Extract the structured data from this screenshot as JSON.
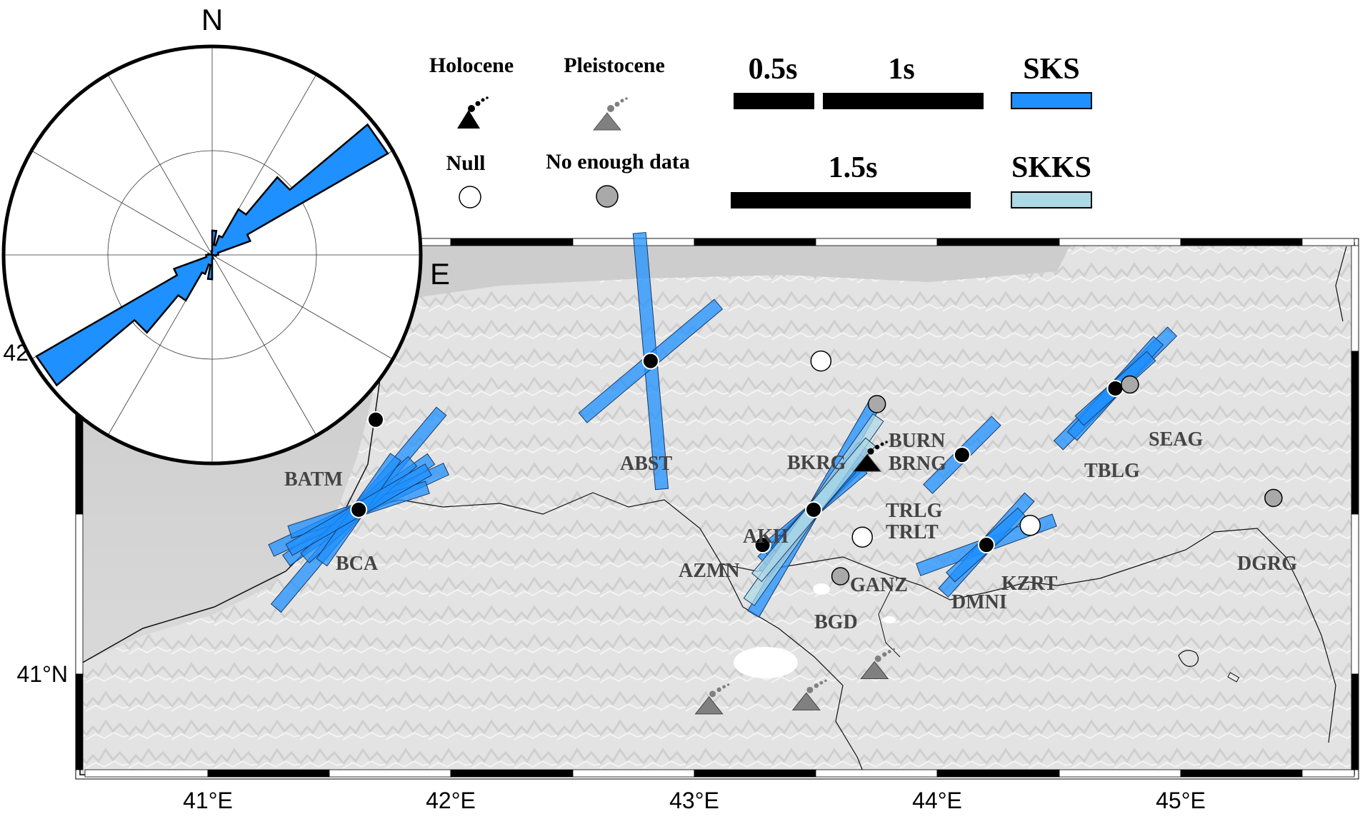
{
  "compass": {
    "north": "N",
    "east": "E"
  },
  "legend": {
    "holocene": "Holocene",
    "pleistocene": "Pleistocene",
    "null": "Null",
    "no_enough_data": "No enough data",
    "scale_05": "0.5s",
    "scale_1": "1s",
    "scale_15": "1.5s",
    "sks": "SKS",
    "skks": "SKKS"
  },
  "colors": {
    "sks": "#1E90FF",
    "skks": "#ADD8E6",
    "null": "#ffffff",
    "no_data": "#A9A9A9",
    "holocene": "#000000",
    "pleistocene": "#808080"
  },
  "axes": {
    "x_ticks": [
      "41°E",
      "42°E",
      "43°E",
      "44°E",
      "45°E"
    ],
    "y_ticks": [
      "41°N",
      "42"
    ]
  },
  "stations": [
    {
      "code": "BATM",
      "lon": 41.69,
      "lat": 41.65,
      "type": "measured",
      "label": "BATM"
    },
    {
      "code": "BCA",
      "lon": 41.62,
      "lat": 41.42,
      "type": "measured",
      "label": "BCA"
    },
    {
      "code": "ABST",
      "lon": 42.82,
      "lat": 41.8,
      "type": "measured",
      "label": "ABST"
    },
    {
      "code": "BKRG",
      "lon": 43.52,
      "lat": 41.8,
      "type": "null",
      "label": "BKRG"
    },
    {
      "code": "BURN",
      "lon": 43.75,
      "lat": 41.69,
      "type": "no_data",
      "label": "BURN"
    },
    {
      "code": "BRNG",
      "lon": 43.75,
      "lat": 41.69,
      "type": "no_data",
      "label": "BRNG"
    },
    {
      "code": "TRLG",
      "lon": 43.7,
      "lat": 41.5,
      "type": "volcano",
      "label": "TRLG"
    },
    {
      "code": "TRLT",
      "lon": 43.7,
      "lat": 41.5,
      "type": "volcano",
      "label": "TRLT"
    },
    {
      "code": "AKH",
      "lon": 43.49,
      "lat": 41.42,
      "type": "measured",
      "label": "AKH"
    },
    {
      "code": "AZMN",
      "lon": 43.28,
      "lat": 41.33,
      "type": "measured",
      "label": "AZMN"
    },
    {
      "code": "GANZ",
      "lon": 43.69,
      "lat": 41.35,
      "type": "null",
      "label": "GANZ"
    },
    {
      "code": "BGD",
      "lon": 43.6,
      "lat": 41.25,
      "type": "no_data",
      "label": "BGD"
    },
    {
      "code": "KZRT",
      "lon": 44.38,
      "lat": 41.38,
      "type": "null",
      "label": "KZRT"
    },
    {
      "code": "DMNI",
      "lon": 44.2,
      "lat": 41.33,
      "type": "measured",
      "label": "DMNI"
    },
    {
      "code": "TBLG",
      "lon": 44.73,
      "lat": 41.73,
      "type": "measured",
      "label": "TBLG"
    },
    {
      "code": "SEAG",
      "lon": 44.79,
      "lat": 41.74,
      "type": "no_data",
      "label": "SEAG"
    },
    {
      "code": "DGRG",
      "lon": 45.38,
      "lat": 41.45,
      "type": "no_data",
      "label": "DGRG"
    },
    {
      "code": "UNK1",
      "lon": 44.1,
      "lat": 41.56,
      "type": "measured",
      "label": ""
    }
  ],
  "volcanoes": [
    {
      "lon": 43.06,
      "lat": 40.92,
      "age": "pleistocene"
    },
    {
      "lon": 43.46,
      "lat": 40.93,
      "age": "pleistocene"
    },
    {
      "lon": 43.74,
      "lat": 41.01,
      "age": "pleistocene"
    },
    {
      "lon": 43.71,
      "lat": 41.54,
      "age": "holocene"
    }
  ],
  "splitting": [
    {
      "lon": 41.62,
      "lat": 41.42,
      "phi": 40,
      "dt": 1.6,
      "phase": "SKS"
    },
    {
      "lon": 41.62,
      "lat": 41.42,
      "phi": 55,
      "dt": 1.1,
      "phase": "SKS"
    },
    {
      "lon": 41.62,
      "lat": 41.42,
      "phi": 65,
      "dt": 1.2,
      "phase": "SKS"
    },
    {
      "lon": 41.62,
      "lat": 41.42,
      "phi": 72,
      "dt": 0.9,
      "phase": "SKS"
    },
    {
      "lon": 41.62,
      "lat": 41.42,
      "phi": 48,
      "dt": 0.9,
      "phase": "SKS"
    },
    {
      "lon": 41.62,
      "lat": 41.42,
      "phi": 35,
      "dt": 0.8,
      "phase": "SKS"
    },
    {
      "lon": 41.62,
      "lat": 41.42,
      "phi": 60,
      "dt": 1.0,
      "phase": "SKS"
    },
    {
      "lon": 42.82,
      "lat": 41.8,
      "phi": -5,
      "dt": 1.6,
      "phase": "SKS"
    },
    {
      "lon": 42.82,
      "lat": 41.8,
      "phi": 50,
      "dt": 1.1,
      "phase": "SKS"
    },
    {
      "lon": 43.49,
      "lat": 41.42,
      "phi": 30,
      "dt": 1.5,
      "phase": "SKS"
    },
    {
      "lon": 43.49,
      "lat": 41.42,
      "phi": 38,
      "dt": 1.0,
      "phase": "SKS"
    },
    {
      "lon": 43.49,
      "lat": 41.42,
      "phi": 45,
      "dt": 0.9,
      "phase": "SKS"
    },
    {
      "lon": 43.49,
      "lat": 41.42,
      "phi": 50,
      "dt": 0.8,
      "phase": "SKS"
    },
    {
      "lon": 43.49,
      "lat": 41.42,
      "phi": 42,
      "dt": 0.7,
      "phase": "SKS"
    },
    {
      "lon": 43.49,
      "lat": 41.42,
      "phi": 35,
      "dt": 1.4,
      "phase": "SKKS"
    },
    {
      "lon": 43.49,
      "lat": 41.42,
      "phi": 40,
      "dt": 1.1,
      "phase": "SKKS"
    },
    {
      "lon": 44.1,
      "lat": 41.56,
      "phi": 45,
      "dt": 0.6,
      "phase": "SKS"
    },
    {
      "lon": 44.2,
      "lat": 41.33,
      "phi": 70,
      "dt": 0.9,
      "phase": "SKS"
    },
    {
      "lon": 44.2,
      "lat": 41.33,
      "phi": 42,
      "dt": 0.8,
      "phase": "SKS"
    },
    {
      "lon": 44.2,
      "lat": 41.33,
      "phi": 48,
      "dt": 0.6,
      "phase": "SKS"
    },
    {
      "lon": 44.73,
      "lat": 41.73,
      "phi": 45,
      "dt": 1.0,
      "phase": "SKS"
    },
    {
      "lon": 44.73,
      "lat": 41.73,
      "phi": 42,
      "dt": 0.8,
      "phase": "SKS"
    },
    {
      "lon": 44.73,
      "lat": 41.73,
      "phi": 48,
      "dt": 0.6,
      "phase": "SKS"
    }
  ],
  "rose": {
    "bins_deg": [
      0,
      10,
      20,
      30,
      40,
      50,
      60,
      70,
      80,
      90,
      100,
      110,
      120,
      130,
      140,
      150,
      160,
      170
    ],
    "counts": [
      1.2,
      0.5,
      1.0,
      2.6,
      5.0,
      10.0,
      2.0,
      0.3,
      0.3,
      0.2,
      0,
      0,
      0,
      0,
      0,
      0,
      0,
      0.2
    ]
  }
}
